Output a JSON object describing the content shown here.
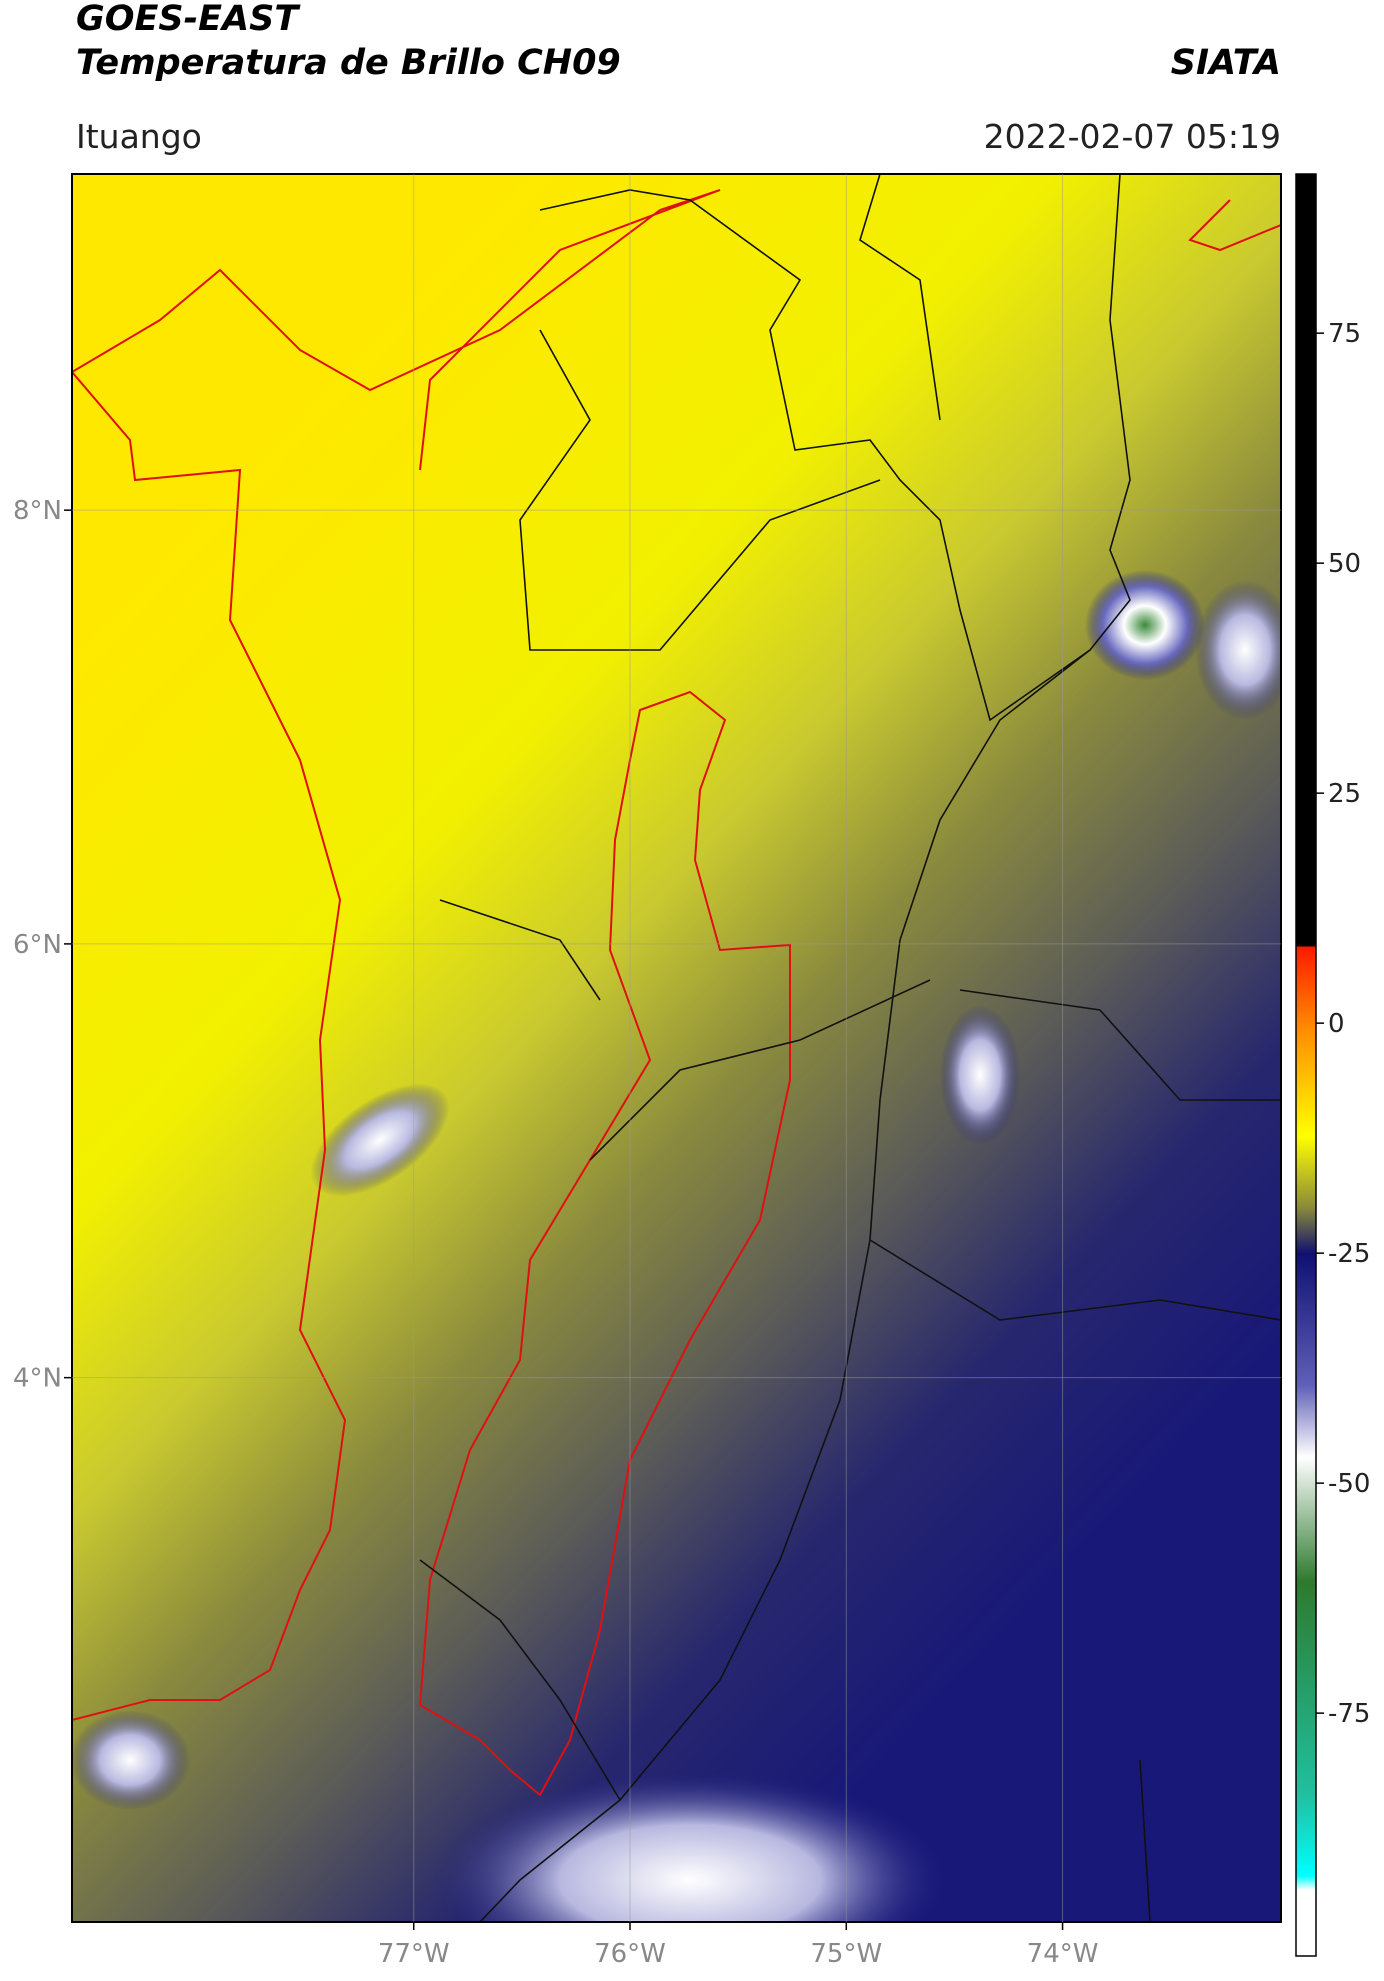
{
  "header": {
    "title": "GOES-EAST",
    "subtitle": "Temperatura de Brillo CH09",
    "source": "SIATA",
    "location": "Ituango",
    "datetime": "2022-02-07 05:19"
  },
  "map": {
    "lon_range": [
      -78.58,
      -72.99
    ],
    "lat_range": [
      1.49,
      9.55
    ],
    "lat_ticks": [
      {
        "value": 8,
        "label": "8°N"
      },
      {
        "value": 6,
        "label": "6°N"
      },
      {
        "value": 4,
        "label": "4°N"
      }
    ],
    "lon_ticks": [
      {
        "value": -77,
        "label": "77°W"
      },
      {
        "value": -76,
        "label": "76°W"
      },
      {
        "value": -75,
        "label": "75°W"
      },
      {
        "value": -74,
        "label": "74°W"
      }
    ]
  },
  "colorbar": {
    "range": [
      -101.4,
      92.3
    ],
    "ticks": [
      75,
      50,
      25,
      0,
      -25,
      -50,
      -75
    ]
  }
}
